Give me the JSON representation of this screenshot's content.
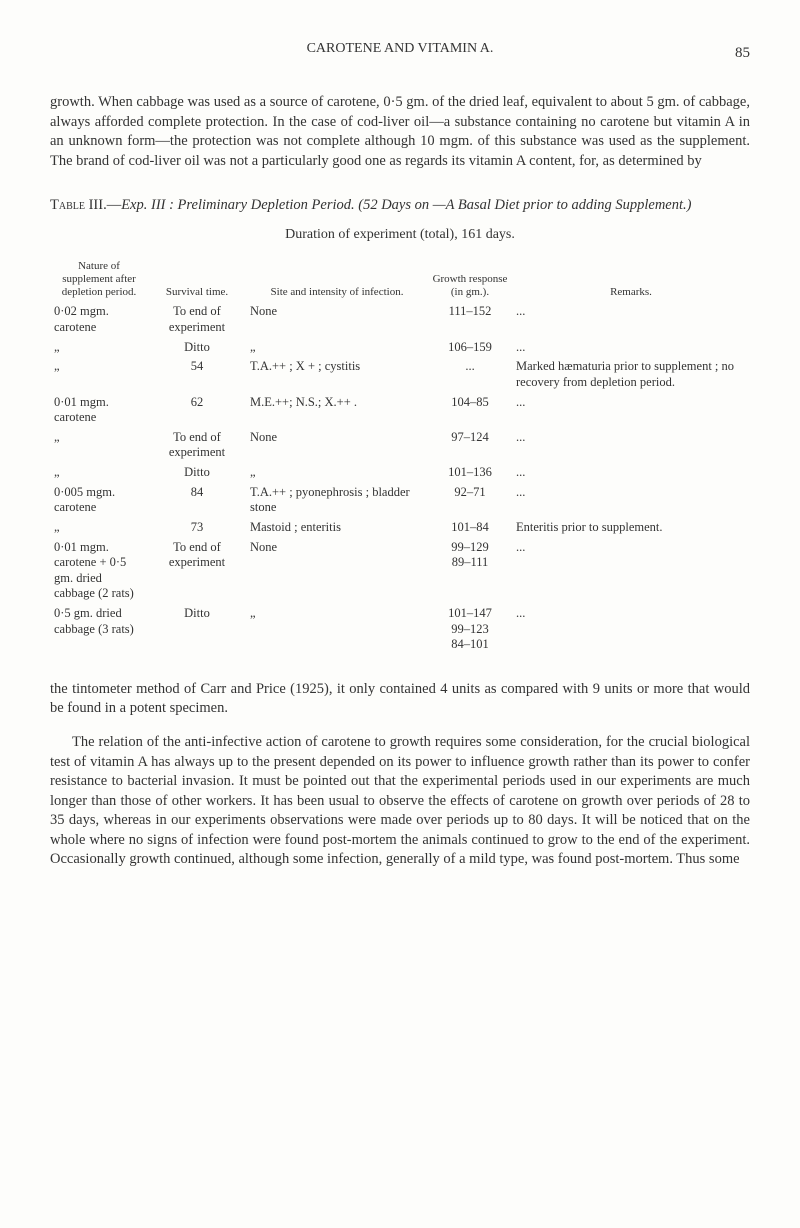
{
  "header": {
    "running_title": "CAROTENE AND VITAMIN A.",
    "page_number": "85"
  },
  "intro_paragraph": "growth. When cabbage was used as a source of carotene, 0·5 gm. of the dried leaf, equivalent to about 5 gm. of cabbage, always afforded complete protection. In the case of cod-liver oil—a substance containing no carotene but vitamin A in an unknown form—the protection was not complete although 10 mgm. of this substance was used as the supplement. The brand of cod-liver oil was not a particularly good one as regards its vitamin A content, for, as determined by",
  "table": {
    "title_prefix": "Table III.—",
    "title_italic": "Exp. III : Preliminary Depletion Period.",
    "title_suffix": " (52 Days on —A Basal Diet prior to adding Supplement.)",
    "duration_line": "Duration of experiment (total), 161 days.",
    "columns": {
      "nature": "Nature of supplement after depletion period.",
      "survival": "Survival time.",
      "site": "Site and intensity of infection.",
      "growth": "Growth response (in gm.).",
      "remarks": "Remarks."
    },
    "rows": [
      {
        "nature": "0·02 mgm. carotene",
        "survival": "To end of experiment",
        "site": "None",
        "growth": "111–152",
        "remarks": "..."
      },
      {
        "nature": "„",
        "survival": "Ditto",
        "site": "„",
        "growth": "106–159",
        "remarks": "..."
      },
      {
        "nature": "„",
        "survival": "54",
        "site": "T.A.++ ; X + ; cys­titis",
        "growth": "...",
        "remarks": "Marked hæmaturia prior to supplement ; no re­covery from depletion period."
      },
      {
        "nature": "0·01 mgm. carotene",
        "survival": "62",
        "site": "M.E.++; N.S.; X.++ .",
        "growth": "104–85",
        "remarks": "..."
      },
      {
        "nature": "„",
        "survival": "To end of experiment",
        "site": "None",
        "growth": "97–124",
        "remarks": "..."
      },
      {
        "nature": "„",
        "survival": "Ditto",
        "site": "„",
        "growth": "101–136",
        "remarks": "..."
      },
      {
        "nature": "0·005 mgm. carotene",
        "survival": "84",
        "site": "T.A.++ ; pyonephro­sis ; bladder stone",
        "growth": "92–71",
        "remarks": "..."
      },
      {
        "nature": "„",
        "survival": "73",
        "site": "Mastoid ; enteritis",
        "growth": "101–84",
        "remarks": "Enteritis prior to sup­plement."
      },
      {
        "nature": "0·01 mgm. carotene + 0·5 gm. dried cabbage (2 rats)",
        "survival": "To end of experiment",
        "site": "None",
        "growth": "99–129\n89–111",
        "remarks": "..."
      },
      {
        "nature": "0·5 gm. dried cabbage (3 rats)",
        "survival": "Ditto",
        "site": "„",
        "growth": "101–147\n99–123\n84–101",
        "remarks": "..."
      }
    ]
  },
  "body_paragraph_1": "the tintometer method of Carr and Price (1925), it only contained 4 units as compared with 9 units or more that would be found in a potent specimen.",
  "body_paragraph_2": "The relation of the anti-infective action of carotene to growth requires some consideration, for the crucial biological test of vitamin A has always up to the present depended on its power to influence growth rather than its power to confer resistance to bacterial invasion. It must be pointed out that the experimental periods used in our experiments are much longer than those of other workers. It has been usual to observe the effects of carotene on growth over periods of 28 to 35 days, whereas in our experiments observations were made over periods up to 80 days. It will be noticed that on the whole where no signs of infection were found post-mortem the animals continued to grow to the end of the experiment. Occasionally growth continued, although some infection, generally of a mild type, was found post-mortem. Thus some"
}
